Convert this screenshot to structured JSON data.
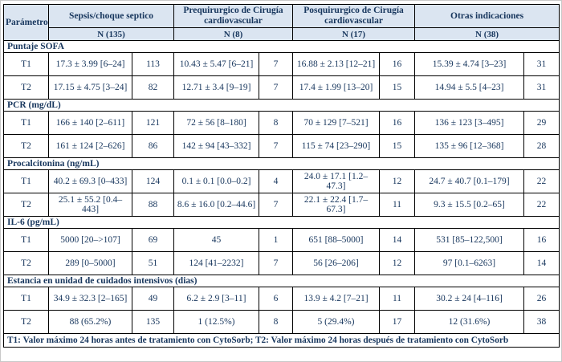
{
  "table": {
    "param_header": "Parámetro",
    "groups": [
      {
        "title": "Sepsis/choque septico",
        "n": "N (135)"
      },
      {
        "title": "Prequirurgico de Cirugía cardiovascular",
        "n": "N (8)"
      },
      {
        "title": "Posquirurgico de Cirugía cardiovascular",
        "n": "N (17)"
      },
      {
        "title": "Otras indicaciones",
        "n": "N (38)"
      }
    ],
    "sections": [
      {
        "title": "Puntaje SOFA",
        "rows": [
          {
            "label": "T1",
            "cells": [
              [
                "17.3 ± 3.99 [6–24]",
                "113"
              ],
              [
                "10.43 ± 5.47 [6–21]",
                "7"
              ],
              [
                "16.88 ± 2.13 [12–21]",
                "16"
              ],
              [
                "15.39 ± 4.74 [3–23]",
                "31"
              ]
            ]
          },
          {
            "label": "T2",
            "cells": [
              [
                "17.15 ± 4.75 [3–24]",
                "82"
              ],
              [
                "12.71 ± 3.4 [9–19]",
                "7"
              ],
              [
                "17.4 ± 1.99 [13–20]",
                "15"
              ],
              [
                "14.94 ± 5.5 [4–23]",
                "31"
              ]
            ]
          }
        ]
      },
      {
        "title": "PCR (mg/dL)",
        "rows": [
          {
            "label": "T1",
            "cells": [
              [
                "166 ± 140 [2–611]",
                "121"
              ],
              [
                "72 ± 56 [8–180]",
                "8"
              ],
              [
                "70 ± 129 [7–521]",
                "16"
              ],
              [
                "136 ± 123 [3–495]",
                "29"
              ]
            ]
          },
          {
            "label": "T2",
            "cells": [
              [
                "161 ± 124 [2–626]",
                "86"
              ],
              [
                "142 ± 94 [43–332]",
                "7"
              ],
              [
                "115 ± 74 [23–290]",
                "15"
              ],
              [
                "135 ± 96 [12–368]",
                "28"
              ]
            ]
          }
        ]
      },
      {
        "title": "Procalcitonina (ng/mL)",
        "rows": [
          {
            "label": "T1",
            "cells": [
              [
                "40.2 ± 69.3 [0–433]",
                "124"
              ],
              [
                "0.1 ± 0.1 [0.0–0.2]",
                "4"
              ],
              [
                "24.0 ± 17.1 [1.2–47.3]",
                "12"
              ],
              [
                "24.7 ± 40.7 [0.1–179]",
                "22"
              ]
            ]
          },
          {
            "label": "T2",
            "cells": [
              [
                "25.1 ± 55.2 [0.4–443]",
                "88"
              ],
              [
                "8.6 ± 16.0 [0.2–44.6]",
                "7"
              ],
              [
                "22.1 ± 22.4 [1.7–67.3]",
                "11"
              ],
              [
                "9.3 ± 15.5 [0.2–65]",
                "22"
              ]
            ]
          }
        ]
      },
      {
        "title": "IL-6 (pg/mL)",
        "rows": [
          {
            "label": "T1",
            "cells": [
              [
                "5000 [20–>107]",
                "69"
              ],
              [
                "45",
                "1"
              ],
              [
                "651 [88–5000]",
                "14"
              ],
              [
                "531 [85–122,500]",
                "16"
              ]
            ]
          },
          {
            "label": "T2",
            "cells": [
              [
                "289 [0–5000]",
                "51"
              ],
              [
                "124 [41–2232]",
                "7"
              ],
              [
                "56 [26–206]",
                "12"
              ],
              [
                "97 [0.1–6263]",
                "14"
              ]
            ]
          }
        ]
      },
      {
        "title": "Estancia en unidad de cuidados intensivos (dias)",
        "rows": [
          {
            "label": "T1",
            "cells": [
              [
                "34.9 ± 32.3 [2–165]",
                "49"
              ],
              [
                "6.2 ± 2.9 [3–11]",
                "6"
              ],
              [
                "13.9 ± 4.2 [7–21]",
                "11"
              ],
              [
                "30.2 ± 24 [4–116]",
                "26"
              ]
            ]
          },
          {
            "label": "T2",
            "cells": [
              [
                "88 (65.2%)",
                "135"
              ],
              [
                "1 (12.5%)",
                "8"
              ],
              [
                "5 (29.4%)",
                "17"
              ],
              [
                "12 (31.6%)",
                "38"
              ]
            ]
          }
        ]
      }
    ],
    "footnote": "T1: Valor máximo 24 horas antes de tratamiento con CytoSorb; T2: Valor máximo 24 horas después de tratamiento con CytoSorb",
    "colors": {
      "header_bg": "#DBE5F1",
      "text": "#17365D",
      "border": "#000000"
    }
  }
}
